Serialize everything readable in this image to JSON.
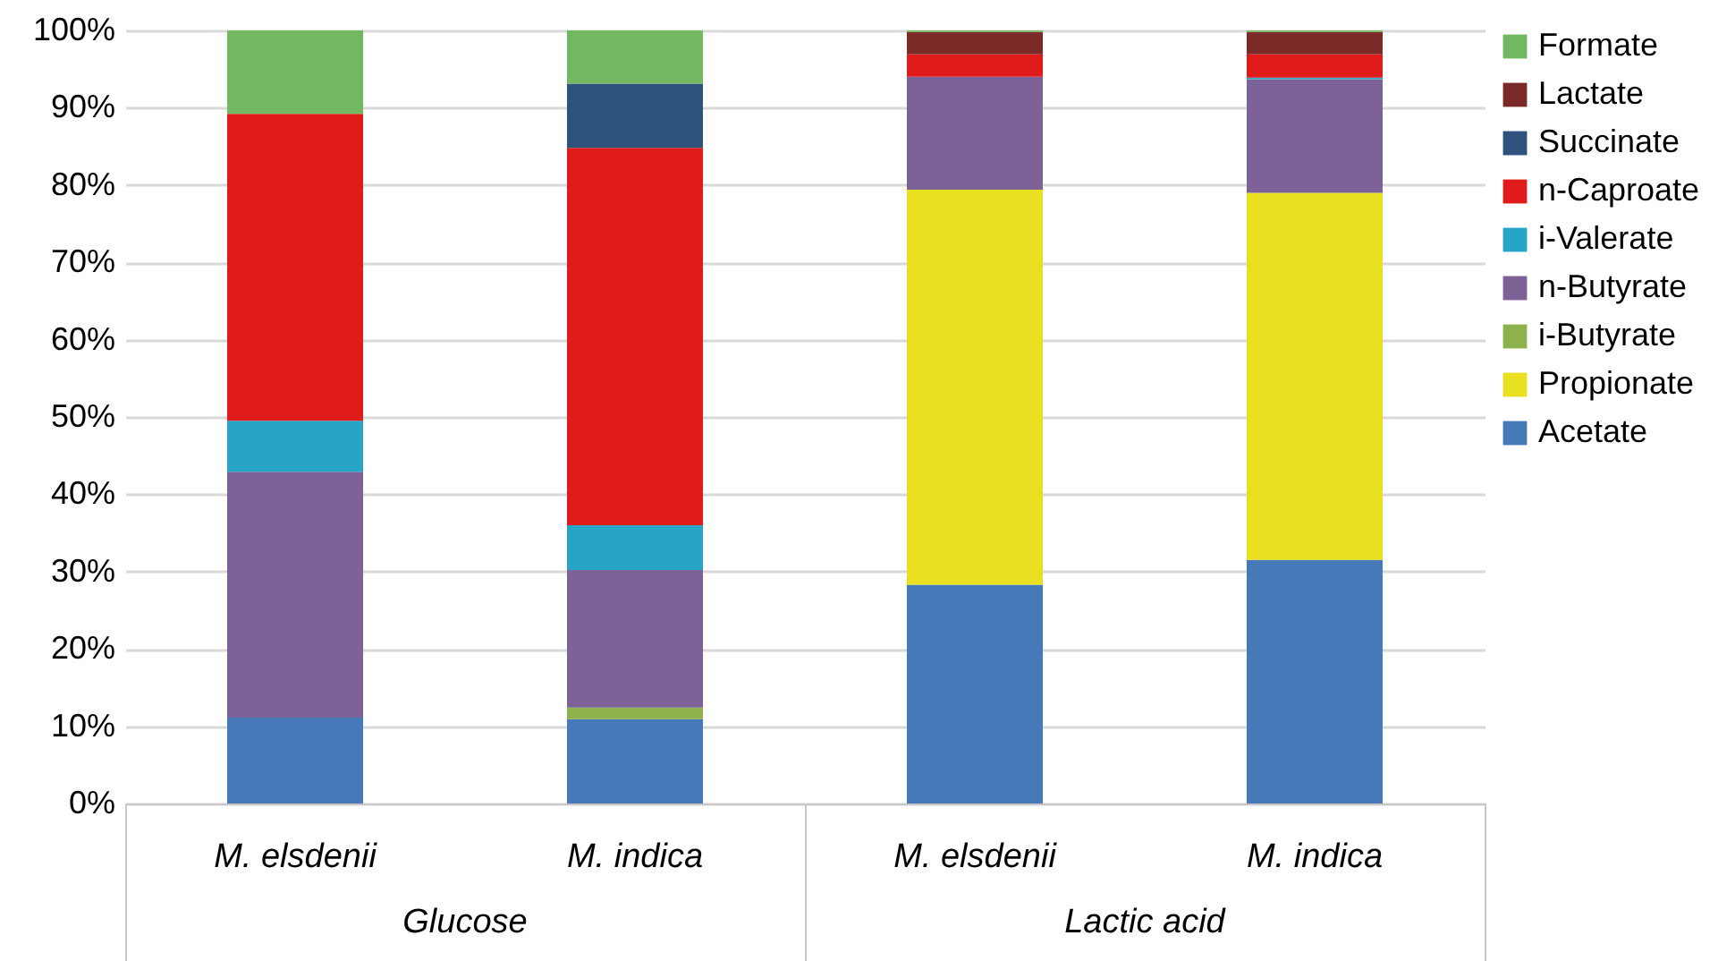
{
  "chart_data": {
    "type": "bar",
    "stacked": true,
    "categories": [
      "M. elsdenii",
      "M. indica",
      "M. elsdenii",
      "M. indica"
    ],
    "series": [
      {
        "name": "Acetate",
        "color": "#4679b8",
        "values": [
          11.1,
          10.9,
          28.3,
          31.5
        ]
      },
      {
        "name": "Propionate",
        "color": "#e8e020",
        "values": [
          0,
          0,
          51.1,
          47.5
        ]
      },
      {
        "name": "i-Butyrate",
        "color": "#8fb24f",
        "values": [
          0,
          1.5,
          0,
          0
        ]
      },
      {
        "name": "n-Butyrate",
        "color": "#7d6297",
        "values": [
          31.8,
          17.8,
          14.6,
          14.7
        ]
      },
      {
        "name": "i-Valerate",
        "color": "#26a5c6",
        "values": [
          6.6,
          5.8,
          0,
          0.2
        ]
      },
      {
        "name": "n-Caproate",
        "color": "#e01b1c",
        "values": [
          39.7,
          48.8,
          2.9,
          3.0
        ]
      },
      {
        "name": "Succinate",
        "color": "#2d527c",
        "values": [
          0,
          8.3,
          0,
          0
        ]
      },
      {
        "name": "Lactate",
        "color": "#7b2a27",
        "values": [
          0,
          0,
          2.9,
          2.9
        ]
      },
      {
        "name": "Formate",
        "color": "#72b860",
        "values": [
          10.8,
          6.9,
          0.2,
          0.2
        ]
      }
    ],
    "ylim": [
      0,
      100
    ],
    "yticks": [
      {
        "value": 0,
        "label": "0%"
      },
      {
        "value": 10,
        "label": "10%"
      },
      {
        "value": 20,
        "label": "20%"
      },
      {
        "value": 30,
        "label": "30%"
      },
      {
        "value": 40,
        "label": "40%"
      },
      {
        "value": 50,
        "label": "50%"
      },
      {
        "value": 60,
        "label": "60%"
      },
      {
        "value": 70,
        "label": "70%"
      },
      {
        "value": 80,
        "label": "80%"
      },
      {
        "value": 90,
        "label": "90%"
      },
      {
        "value": 100,
        "label": "100%"
      }
    ],
    "grid": "y",
    "legend": "right",
    "annotations": [
      "Glucose",
      "Lactic acid"
    ]
  }
}
